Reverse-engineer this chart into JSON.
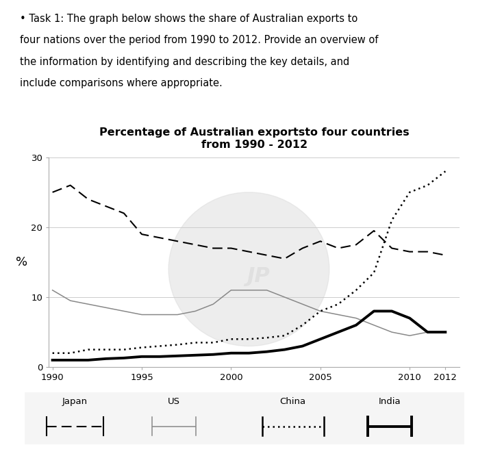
{
  "title_line1": "Percentage of Australian exportsto four countries",
  "title_line2": "from 1990 - 2012",
  "ylabel": "%",
  "years": [
    1990,
    1991,
    1992,
    1993,
    1994,
    1995,
    1996,
    1997,
    1998,
    1999,
    2000,
    2001,
    2002,
    2003,
    2004,
    2005,
    2006,
    2007,
    2008,
    2009,
    2010,
    2011,
    2012
  ],
  "japan": [
    25,
    26,
    24,
    23,
    22,
    19,
    18.5,
    18,
    17.5,
    17,
    17,
    16.5,
    16,
    15.5,
    17,
    18,
    17,
    17.5,
    19.5,
    17,
    16.5,
    16.5,
    16
  ],
  "us": [
    11,
    9.5,
    9,
    8.5,
    8,
    7.5,
    7.5,
    7.5,
    8,
    9,
    11,
    11,
    11,
    10,
    9,
    8,
    7.5,
    7,
    6,
    5,
    4.5,
    5,
    5
  ],
  "china": [
    2,
    2,
    2.5,
    2.5,
    2.5,
    2.8,
    3,
    3.2,
    3.5,
    3.5,
    4,
    4,
    4.2,
    4.5,
    6,
    8,
    9,
    11,
    13.5,
    21,
    25,
    26,
    28
  ],
  "india": [
    1,
    1,
    1,
    1.2,
    1.3,
    1.5,
    1.5,
    1.6,
    1.7,
    1.8,
    2,
    2,
    2.2,
    2.5,
    3,
    4,
    5,
    6,
    8,
    8,
    7,
    5,
    5
  ],
  "ylim": [
    0,
    30
  ],
  "yticks": [
    0,
    10,
    20,
    30
  ],
  "xticks": [
    1990,
    1995,
    2000,
    2005,
    2010,
    2012
  ],
  "text_color": "#000000",
  "bg_color": "#ffffff",
  "grid_color": "#cccccc",
  "japan_color": "#000000",
  "us_color": "#888888",
  "china_color": "#000000",
  "india_color": "#000000",
  "task_text_bullet": "• Task 1: The graph below shows the share of Australian exports to",
  "task_text_l2": "four nations over the period from 1990 to 2012. Provide an overview of",
  "task_text_l3": "the information by identifying and describing the key details, and",
  "task_text_l4": "include comparisons where appropriate.",
  "legend_labels": [
    "Japan",
    "US",
    "China",
    "India"
  ]
}
